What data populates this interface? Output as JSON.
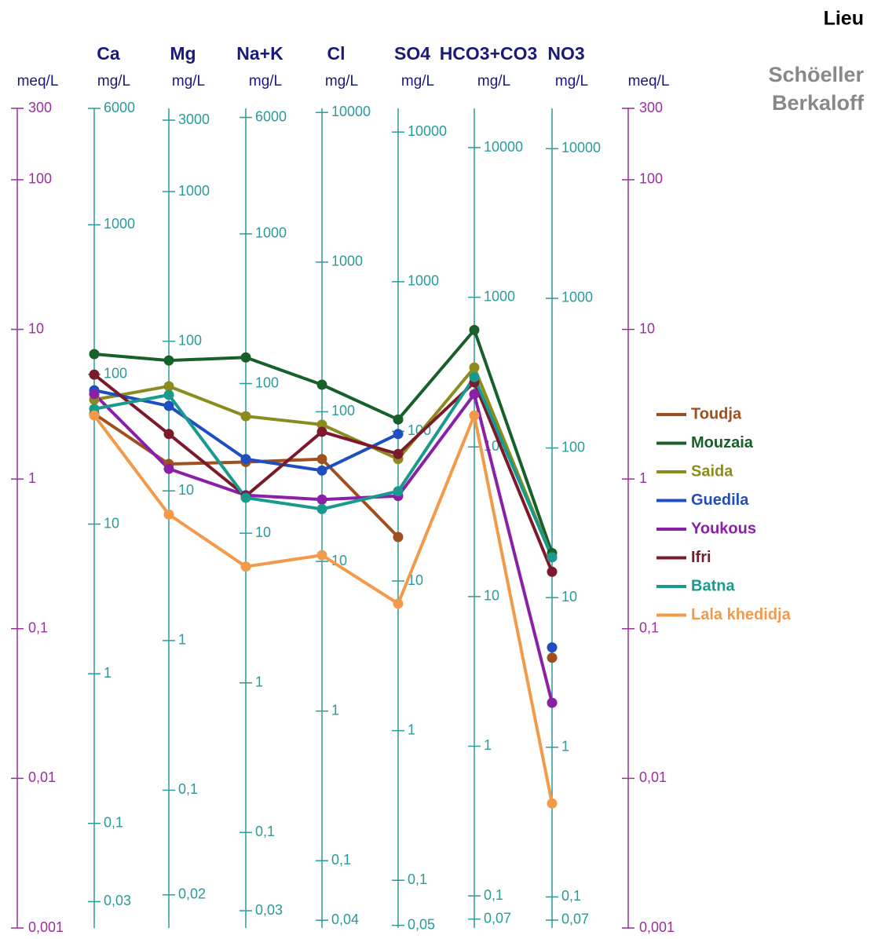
{
  "chart_data": {
    "type": "schoeller",
    "title": "Lieu",
    "subtitle": [
      "Schöeller",
      "Berkaloff"
    ],
    "log_scale": true,
    "legend": "right",
    "meq_axis": {
      "unit": "meq/L",
      "color": "#9b2f9b",
      "ylim": [
        0.001,
        300
      ],
      "yticks": [
        300,
        100,
        10,
        1,
        {
          "value": 0.1,
          "label": "0,1"
        },
        {
          "value": 0.01,
          "label": "0,01"
        },
        {
          "value": 0.001,
          "label": "0,001"
        }
      ]
    },
    "categories": [
      "Ca",
      "Mg",
      "Na+K",
      "Cl",
      "SO4",
      "HCO3+CO3",
      "NO3"
    ],
    "mg_axes": [
      {
        "unit": "mg/L",
        "ylim": [
          0.02,
          6000
        ],
        "yticks": [
          6000,
          1000,
          100,
          10,
          1,
          {
            "value": 0.1,
            "label": "0,1"
          },
          {
            "value": 0.03,
            "label": "0,03"
          }
        ]
      },
      {
        "unit": "mg/L",
        "ylim": [
          0.012,
          3600
        ],
        "yticks": [
          3000,
          1000,
          100,
          10,
          1,
          {
            "value": 0.1,
            "label": "0,1"
          },
          {
            "value": 0.02,
            "label": "0,02"
          }
        ]
      },
      {
        "unit": "mg/L",
        "ylim": [
          0.023,
          6900
        ],
        "yticks": [
          6000,
          1000,
          100,
          10,
          1,
          {
            "value": 0.1,
            "label": "0,1"
          },
          {
            "value": 0.03,
            "label": "0,03"
          }
        ]
      },
      {
        "unit": "mg/L",
        "ylim": [
          0.0355,
          10650
        ],
        "yticks": [
          10000,
          1000,
          100,
          10,
          1,
          {
            "value": 0.1,
            "label": "0,1"
          },
          {
            "value": 0.04,
            "label": "0,04"
          }
        ]
      },
      {
        "unit": "mg/L",
        "ylim": [
          0.048,
          14400
        ],
        "yticks": [
          10000,
          1000,
          100,
          10,
          1,
          {
            "value": 0.1,
            "label": "0,1"
          },
          {
            "value": 0.05,
            "label": "0,05"
          }
        ]
      },
      {
        "unit": "mg/L",
        "ylim": [
          0.061,
          18300
        ],
        "yticks": [
          10000,
          1000,
          100,
          10,
          1,
          {
            "value": 0.1,
            "label": "0,1"
          },
          {
            "value": 0.07,
            "label": "0,07"
          }
        ]
      },
      {
        "unit": "mg/L",
        "ylim": [
          0.062,
          18600
        ],
        "yticks": [
          10000,
          1000,
          100,
          10,
          1,
          {
            "value": 0.1,
            "label": "0,1"
          },
          {
            "value": 0.07,
            "label": "0,07"
          }
        ]
      }
    ],
    "mg_axis_color": "#2a9a9a",
    "series": [
      {
        "name": "Toudja",
        "color": "#a0501e",
        "values": [
          2.73,
          1.26,
          1.3,
          1.36,
          0.41,
          null,
          0.064
        ]
      },
      {
        "name": "Mouzaia",
        "color": "#17602a",
        "values": [
          6.84,
          6.2,
          6.5,
          4.27,
          2.5,
          9.9,
          0.32
        ]
      },
      {
        "name": "Saida",
        "color": "#8c8c1e",
        "values": [
          3.39,
          4.17,
          2.63,
          2.31,
          1.36,
          5.56,
          0.3
        ]
      },
      {
        "name": "Guedila",
        "color": "#1f4fbf",
        "values": [
          3.92,
          3.08,
          1.36,
          1.14,
          2.0,
          null,
          0.075
        ]
      },
      {
        "name": "Youkous",
        "color": "#8a1fa8",
        "values": [
          3.7,
          1.17,
          0.78,
          0.73,
          0.77,
          3.69,
          0.032
        ]
      },
      {
        "name": "Ifri",
        "color": "#7a1a2a",
        "values": [
          4.99,
          2.0,
          0.77,
          2.07,
          1.47,
          4.43,
          0.24
        ]
      },
      {
        "name": "Batna",
        "color": "#1a9a8e",
        "values": [
          2.94,
          3.65,
          0.75,
          0.63,
          0.83,
          4.8,
          0.3
        ]
      },
      {
        "name": "Lala khedidja",
        "color": "#f39a4a",
        "values": [
          2.66,
          0.58,
          0.26,
          0.31,
          0.147,
          2.66,
          0.0068
        ]
      }
    ]
  }
}
